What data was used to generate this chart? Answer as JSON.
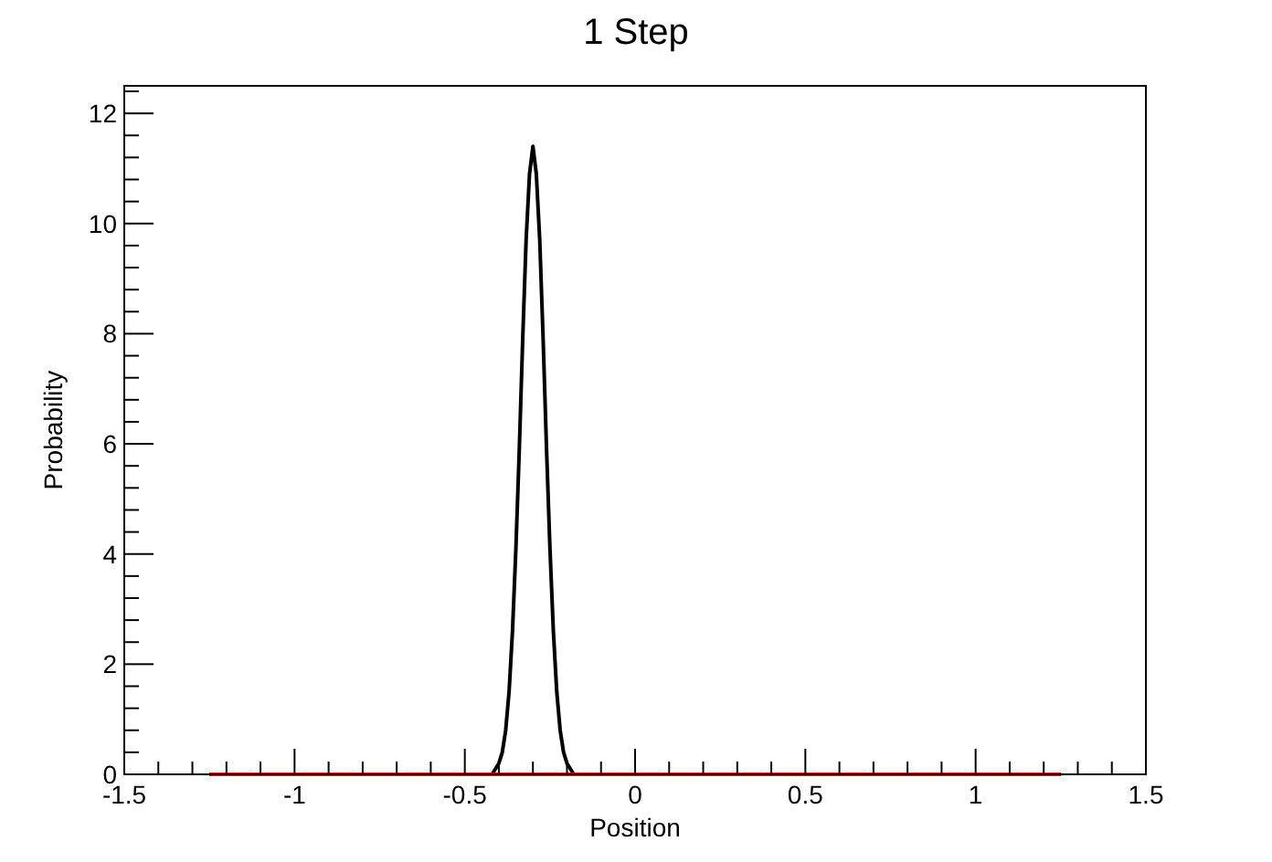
{
  "chart_data": {
    "type": "line",
    "title": "1 Step",
    "xlabel": "Position",
    "ylabel": "Probability",
    "xlim": [
      -1.5,
      1.5
    ],
    "ylim": [
      0,
      12.5
    ],
    "xticks": [
      -1.5,
      {
        "value": -1.4,
        "label": null
      },
      {
        "value": -1.3,
        "label": null
      },
      {
        "value": -1.2,
        "label": null
      },
      {
        "value": -1.1,
        "label": null
      },
      -1,
      {
        "value": -0.9,
        "label": null
      },
      {
        "value": -0.8,
        "label": null
      },
      {
        "value": -0.7,
        "label": null
      },
      {
        "value": -0.6,
        "label": null
      },
      -0.5,
      {
        "value": -0.4,
        "label": null
      },
      {
        "value": -0.3,
        "label": null
      },
      {
        "value": -0.2,
        "label": null
      },
      {
        "value": -0.1,
        "label": null
      },
      0,
      {
        "value": 0.1,
        "label": null
      },
      {
        "value": 0.2,
        "label": null
      },
      {
        "value": 0.3,
        "label": null
      },
      {
        "value": 0.4,
        "label": null
      },
      0.5,
      {
        "value": 0.6,
        "label": null
      },
      {
        "value": 0.7,
        "label": null
      },
      {
        "value": 0.8,
        "label": null
      },
      {
        "value": 0.9,
        "label": null
      },
      1,
      {
        "value": 1.1,
        "label": null
      },
      {
        "value": 1.2,
        "label": null
      },
      {
        "value": 1.3,
        "label": null
      },
      {
        "value": 1.4,
        "label": null
      },
      1.5
    ],
    "yticks": [
      0,
      {
        "value": 0.4,
        "label": null
      },
      {
        "value": 0.8,
        "label": null
      },
      {
        "value": 1.2,
        "label": null
      },
      {
        "value": 1.6,
        "label": null
      },
      2,
      {
        "value": 2.4,
        "label": null
      },
      {
        "value": 2.8,
        "label": null
      },
      {
        "value": 3.2,
        "label": null
      },
      {
        "value": 3.6,
        "label": null
      },
      4,
      {
        "value": 4.4,
        "label": null
      },
      {
        "value": 4.8,
        "label": null
      },
      {
        "value": 5.2,
        "label": null
      },
      {
        "value": 5.6,
        "label": null
      },
      6,
      {
        "value": 6.4,
        "label": null
      },
      {
        "value": 6.8,
        "label": null
      },
      {
        "value": 7.2,
        "label": null
      },
      {
        "value": 7.6,
        "label": null
      },
      8,
      {
        "value": 8.4,
        "label": null
      },
      {
        "value": 8.8,
        "label": null
      },
      {
        "value": 9.2,
        "label": null
      },
      {
        "value": 9.6,
        "label": null
      },
      10,
      {
        "value": 10.4,
        "label": null
      },
      {
        "value": 10.8,
        "label": null
      },
      {
        "value": 11.2,
        "label": null
      },
      {
        "value": 11.6,
        "label": null
      },
      12,
      {
        "value": 12.4,
        "label": null
      }
    ],
    "grid": false,
    "marker": "none",
    "line_style": "solid",
    "series": [
      {
        "color": "#000000",
        "x": [
          -1.25,
          -0.42,
          -0.4,
          -0.39,
          -0.38,
          -0.37,
          -0.36,
          -0.35,
          -0.34,
          -0.33,
          -0.32,
          -0.31,
          -0.3,
          -0.29,
          -0.28,
          -0.27,
          -0.26,
          -0.25,
          -0.24,
          -0.23,
          -0.22,
          -0.21,
          -0.2,
          -0.18,
          1.25
        ],
        "values": [
          0,
          0,
          0.2,
          0.4,
          0.8,
          1.5,
          2.6,
          4.1,
          5.9,
          7.9,
          9.7,
          10.9,
          11.4,
          10.9,
          9.7,
          7.9,
          5.9,
          4.1,
          2.6,
          1.5,
          0.8,
          0.4,
          0.2,
          0,
          0
        ]
      },
      {
        "color": "#ff0000",
        "x": [
          -1.25,
          1.25
        ],
        "values": [
          0,
          0
        ]
      }
    ]
  }
}
